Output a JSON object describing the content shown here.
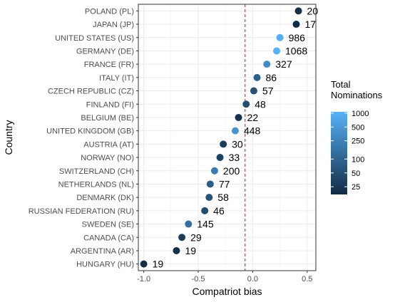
{
  "chart_data": {
    "type": "scatter",
    "xlabel": "Compatriot bias",
    "ylabel": "Country",
    "xlim": [
      -1.05,
      0.58
    ],
    "x_ticks": [
      -1.0,
      -0.5,
      0.0,
      0.5
    ],
    "x_tick_labels": [
      "-1.0",
      "-0.5",
      "0.0",
      "0.5"
    ],
    "reference_line": {
      "x": -0.07,
      "color": "#e8341c",
      "style": "dashed"
    },
    "grid": true,
    "legend": {
      "title_lines": [
        "Total",
        "Nominations"
      ],
      "scale": "log",
      "range": [
        17,
        1068
      ],
      "breaks": [
        1000,
        500,
        250,
        100,
        50,
        25
      ],
      "break_labels": [
        "1000",
        "500",
        "250",
        "100",
        "50",
        "25"
      ],
      "low_color": "#132b43",
      "high_color": "#56b1f7",
      "placement": "right"
    },
    "points": [
      {
        "country": "POLAND (PL)",
        "x": 0.42,
        "n": 20,
        "label": "20"
      },
      {
        "country": "JAPAN (JP)",
        "x": 0.4,
        "n": 17,
        "label": "17"
      },
      {
        "country": "UNITED STATES (US)",
        "x": 0.25,
        "n": 986,
        "label": "986"
      },
      {
        "country": "GERMANY (DE)",
        "x": 0.22,
        "n": 1068,
        "label": "1068"
      },
      {
        "country": "FRANCE (FR)",
        "x": 0.13,
        "n": 327,
        "label": "327"
      },
      {
        "country": "ITALY (IT)",
        "x": 0.04,
        "n": 86,
        "label": "86"
      },
      {
        "country": "CZECH REPUBLIC (CZ)",
        "x": 0.01,
        "n": 57,
        "label": "57"
      },
      {
        "country": "FINLAND (FI)",
        "x": -0.06,
        "n": 48,
        "label": "48"
      },
      {
        "country": "BELGIUM (BE)",
        "x": -0.13,
        "n": 22,
        "label": "22"
      },
      {
        "country": "UNITED KINGDOM (GB)",
        "x": -0.16,
        "n": 448,
        "label": "448"
      },
      {
        "country": "AUSTRIA (AT)",
        "x": -0.27,
        "n": 30,
        "label": "30"
      },
      {
        "country": "NORWAY (NO)",
        "x": -0.3,
        "n": 33,
        "label": "33"
      },
      {
        "country": "SWITZERLAND (CH)",
        "x": -0.35,
        "n": 200,
        "label": "200"
      },
      {
        "country": "NETHERLANDS (NL)",
        "x": -0.39,
        "n": 77,
        "label": "77"
      },
      {
        "country": "DENMARK (DK)",
        "x": -0.4,
        "n": 58,
        "label": "58"
      },
      {
        "country": "RUSSIAN FEDERATION (RU)",
        "x": -0.44,
        "n": 46,
        "label": "46"
      },
      {
        "country": "SWEDEN (SE)",
        "x": -0.59,
        "n": 145,
        "label": "145"
      },
      {
        "country": "CANADA (CA)",
        "x": -0.65,
        "n": 29,
        "label": "29"
      },
      {
        "country": "ARGENTINA (AR)",
        "x": -0.7,
        "n": 19,
        "label": "19"
      },
      {
        "country": "HUNGARY (HU)",
        "x": -1.0,
        "n": 19,
        "label": "19"
      }
    ]
  }
}
